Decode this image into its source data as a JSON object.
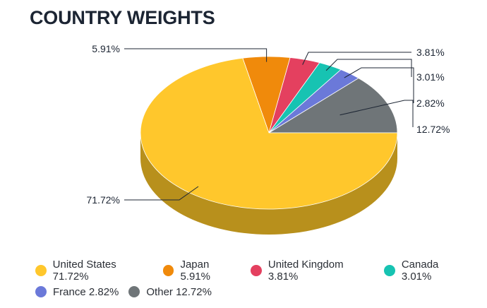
{
  "title": "COUNTRY WEIGHTS",
  "chart_data": {
    "type": "pie",
    "title": "COUNTRY WEIGHTS",
    "series": [
      {
        "name": "United States",
        "value": 71.72,
        "label": "71.72%",
        "color": "#ffc72c",
        "side": "#b8901c"
      },
      {
        "name": "Japan",
        "value": 5.91,
        "label": "5.91%",
        "color": "#f08a0b",
        "side": "#a86107"
      },
      {
        "name": "United Kingdom",
        "value": 3.81,
        "label": "3.81%",
        "color": "#e4405f",
        "side": "#a12d43"
      },
      {
        "name": "Canada",
        "value": 3.01,
        "label": "3.01%",
        "color": "#17c3b2",
        "side": "#10887d"
      },
      {
        "name": "France",
        "value": 2.82,
        "label": "2.82%",
        "color": "#6b79d9",
        "side": "#4b5598"
      },
      {
        "name": "Other",
        "value": 12.72,
        "label": "12.72%",
        "color": "#6f7578",
        "side": "#4e5254"
      }
    ],
    "style": "3d-pie",
    "legend_position": "bottom"
  },
  "legend": [
    [
      {
        "label": "United States 71.72%",
        "color": "#ffc72c"
      },
      {
        "label": "Japan 5.91%",
        "color": "#f08a0b"
      },
      {
        "label": "United Kingdom 3.81%",
        "color": "#e4405f"
      },
      {
        "label": "Canada 3.01%",
        "color": "#17c3b2"
      }
    ],
    [
      {
        "label": "France 2.82%",
        "color": "#6b79d9"
      },
      {
        "label": "Other 12.72%",
        "color": "#6f7578"
      }
    ]
  ]
}
